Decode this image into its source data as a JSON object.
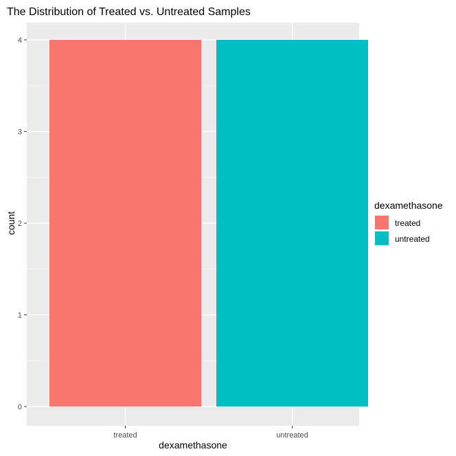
{
  "chart_data": {
    "type": "bar",
    "title": "The Distribution of Treated vs. Untreated Samples",
    "xlabel": "dexamethasone",
    "ylabel": "count",
    "categories": [
      "treated",
      "untreated"
    ],
    "values": [
      4,
      4
    ],
    "colors": [
      "#F8766D",
      "#00BFC4"
    ],
    "ylim": [
      0,
      4
    ],
    "yticks": [
      0,
      1,
      2,
      3,
      4
    ],
    "grid": true,
    "panel_background": "#EBEBEB",
    "legend": {
      "title": "dexamethasone",
      "position": "right",
      "entries": [
        "treated",
        "untreated"
      ]
    }
  }
}
